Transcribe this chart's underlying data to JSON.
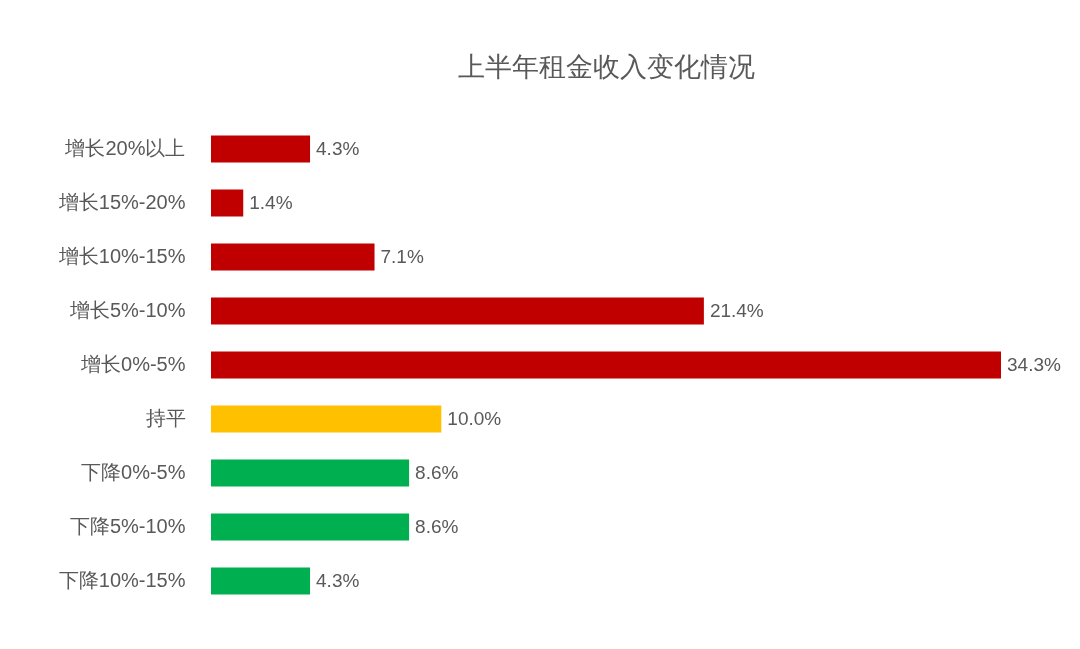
{
  "chart_data": {
    "type": "bar",
    "orientation": "horizontal",
    "title": "上半年租金收入变化情况",
    "categories": [
      "增长20%以上",
      "增长15%-20%",
      "增长10%-15%",
      "增长5%-10%",
      "增长0%-5%",
      "持平",
      "下降0%-5%",
      "下降5%-10%",
      "下降10%-15%"
    ],
    "values": [
      4.3,
      1.4,
      7.1,
      21.4,
      34.3,
      10.0,
      8.6,
      8.6,
      4.3
    ],
    "value_labels": [
      "4.3%",
      "1.4%",
      "7.1%",
      "21.4%",
      "34.3%",
      "10.0%",
      "8.6%",
      "8.6%",
      "4.3%"
    ],
    "colors": [
      "#c00000",
      "#c00000",
      "#c00000",
      "#c00000",
      "#c00000",
      "#ffc000",
      "#00b050",
      "#00b050",
      "#00b050"
    ],
    "legend": false
  }
}
